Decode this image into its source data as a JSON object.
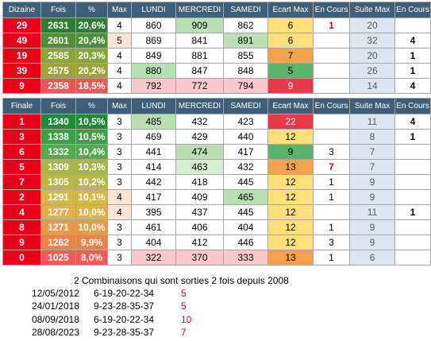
{
  "table1": {
    "headers": [
      "Dizaine",
      "Fois",
      "%",
      "Max",
      "LUNDI",
      "MERCREDI",
      "SAMEDI",
      "Ecart Max",
      "En Cours",
      "Suite Max",
      "En Cours"
    ],
    "rows": [
      {
        "num": "29",
        "fois": "2631",
        "pct": "20,6%",
        "max": "4",
        "lundi": "860",
        "mercredi": "909",
        "samedi": "862",
        "ecart": "6",
        "encours": "1",
        "suite": "20",
        "encours2": ""
      },
      {
        "num": "49",
        "fois": "2601",
        "pct": "20,4%",
        "max": "5",
        "lundi": "869",
        "mercredi": "841",
        "samedi": "891",
        "ecart": "6",
        "encours": "",
        "suite": "32",
        "encours2": "4"
      },
      {
        "num": "19",
        "fois": "2585",
        "pct": "20,3%",
        "max": "4",
        "lundi": "849",
        "mercredi": "881",
        "samedi": "855",
        "ecart": "7",
        "encours": "",
        "suite": "20",
        "encours2": "1"
      },
      {
        "num": "39",
        "fois": "2575",
        "pct": "20,2%",
        "max": "4",
        "lundi": "880",
        "mercredi": "847",
        "samedi": "848",
        "ecart": "5",
        "encours": "",
        "suite": "26",
        "encours2": "1"
      },
      {
        "num": "9",
        "fois": "2358",
        "pct": "18,5%",
        "max": "4",
        "lundi": "792",
        "mercredi": "772",
        "samedi": "794",
        "ecart": "9",
        "encours": "",
        "suite": "14",
        "encours2": "4"
      }
    ]
  },
  "table2": {
    "headers": [
      "Finale",
      "Fois",
      "%",
      "Max",
      "LUNDI",
      "MERCREDI",
      "SAMEDI",
      "Ecart Max",
      "En Cours",
      "Suite Max",
      "En Cours"
    ],
    "rows": [
      {
        "num": "1",
        "fois": "1340",
        "pct": "10,5%",
        "max": "3",
        "lundi": "485",
        "mercredi": "432",
        "samedi": "423",
        "ecart": "22",
        "encours": "",
        "suite": "11",
        "encours2": "4"
      },
      {
        "num": "3",
        "fois": "1338",
        "pct": "10,5%",
        "max": "3",
        "lundi": "469",
        "mercredi": "429",
        "samedi": "440",
        "ecart": "12",
        "encours": "",
        "suite": "8",
        "encours2": "1"
      },
      {
        "num": "6",
        "fois": "1332",
        "pct": "10,4%",
        "max": "3",
        "lundi": "441",
        "mercredi": "474",
        "samedi": "417",
        "ecart": "9",
        "encours": "3",
        "suite": "7",
        "encours2": ""
      },
      {
        "num": "5",
        "fois": "1309",
        "pct": "10,3%",
        "max": "3",
        "lundi": "414",
        "mercredi": "463",
        "samedi": "432",
        "ecart": "13",
        "encours": "7",
        "suite": "7",
        "encours2": ""
      },
      {
        "num": "7",
        "fois": "1305",
        "pct": "10,2%",
        "max": "3",
        "lundi": "442",
        "mercredi": "418",
        "samedi": "445",
        "ecart": "12",
        "encours": "1",
        "suite": "9",
        "encours2": ""
      },
      {
        "num": "2",
        "fois": "1291",
        "pct": "10,1%",
        "max": "4",
        "lundi": "417",
        "mercredi": "409",
        "samedi": "465",
        "ecart": "12",
        "encours": "1",
        "suite": "9",
        "encours2": ""
      },
      {
        "num": "4",
        "fois": "1277",
        "pct": "10,0%",
        "max": "4",
        "lundi": "395",
        "mercredi": "437",
        "samedi": "445",
        "ecart": "12",
        "encours": "",
        "suite": "11",
        "encours2": "1"
      },
      {
        "num": "8",
        "fois": "1271",
        "pct": "10,0%",
        "max": "3",
        "lundi": "461",
        "mercredi": "406",
        "samedi": "404",
        "ecart": "12",
        "encours": "1",
        "suite": "9",
        "encours2": ""
      },
      {
        "num": "9",
        "fois": "1262",
        "pct": "9,9%",
        "max": "3",
        "lundi": "404",
        "mercredi": "412",
        "samedi": "446",
        "ecart": "12",
        "encours": "3",
        "suite": "9",
        "encours2": ""
      },
      {
        "num": "0",
        "fois": "1025",
        "pct": "8,0%",
        "max": "3",
        "lundi": "322",
        "mercredi": "370",
        "samedi": "333",
        "ecart": "13",
        "encours": "1",
        "suite": "6",
        "encours2": ""
      }
    ]
  },
  "notes": {
    "title": "2 Combinaisons qui sont sorties 2 fois depuis 2008",
    "entries": [
      {
        "date": "12/05/2012",
        "combo": "6-19-20-22-34",
        "count": "5"
      },
      {
        "date": "24/01/2018",
        "combo": "9-23-28-35-37",
        "count": "5"
      },
      {
        "date": "08/09/2018",
        "combo": "6-19-20-22-34",
        "count": "10"
      },
      {
        "date": "28/08/2023",
        "combo": "9-23-28-35-37",
        "count": "7"
      }
    ]
  }
}
